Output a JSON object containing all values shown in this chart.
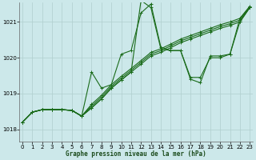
{
  "title": "Graphe pression niveau de la mer (hPa)",
  "bg_color": "#cce8ea",
  "line_color": "#1a6b1a",
  "grid_color": "#b0cece",
  "ylim": [
    1017.65,
    1021.55
  ],
  "yticks": [
    1018,
    1019,
    1020,
    1021
  ],
  "xlim": [
    -0.3,
    23.3
  ],
  "xticks": [
    0,
    1,
    2,
    3,
    4,
    5,
    6,
    7,
    8,
    9,
    10,
    11,
    12,
    13,
    14,
    15,
    16,
    17,
    18,
    19,
    20,
    21,
    22,
    23
  ],
  "smooth_line1": [
    1018.2,
    1018.48,
    1018.55,
    1018.55,
    1018.55,
    1018.53,
    1018.37,
    1018.6,
    1018.85,
    1019.15,
    1019.38,
    1019.6,
    1019.82,
    1020.05,
    1020.15,
    1020.28,
    1020.42,
    1020.52,
    1020.62,
    1020.72,
    1020.82,
    1020.9,
    1021.0,
    1021.4
  ],
  "smooth_line2": [
    1018.2,
    1018.48,
    1018.55,
    1018.55,
    1018.55,
    1018.53,
    1018.37,
    1018.65,
    1018.9,
    1019.2,
    1019.43,
    1019.65,
    1019.87,
    1020.1,
    1020.2,
    1020.33,
    1020.47,
    1020.57,
    1020.67,
    1020.77,
    1020.87,
    1020.95,
    1021.05,
    1021.42
  ],
  "smooth_line3": [
    1018.2,
    1018.48,
    1018.55,
    1018.55,
    1018.55,
    1018.53,
    1018.37,
    1018.7,
    1018.95,
    1019.25,
    1019.48,
    1019.7,
    1019.92,
    1020.15,
    1020.25,
    1020.38,
    1020.52,
    1020.62,
    1020.72,
    1020.82,
    1020.92,
    1021.0,
    1021.1,
    1021.44
  ],
  "spiky_line": [
    1018.2,
    1018.48,
    1018.55,
    1018.55,
    1018.55,
    1018.53,
    1018.37,
    1019.6,
    1019.15,
    1019.25,
    1020.1,
    1020.2,
    1021.25,
    1021.5,
    1020.3,
    1020.2,
    1020.2,
    1019.45,
    1019.45,
    1020.0,
    1020.0,
    1020.1,
    1021.1,
    1021.4
  ],
  "wiggly_line": [
    1018.2,
    1018.48,
    1018.55,
    1018.55,
    1018.55,
    1018.53,
    1018.37,
    1018.6,
    1018.85,
    1019.15,
    1019.38,
    1019.6,
    1021.6,
    1021.4,
    1020.25,
    1020.2,
    1020.2,
    1019.4,
    1019.3,
    1020.05,
    1020.05,
    1020.1,
    1021.0,
    1021.4
  ]
}
